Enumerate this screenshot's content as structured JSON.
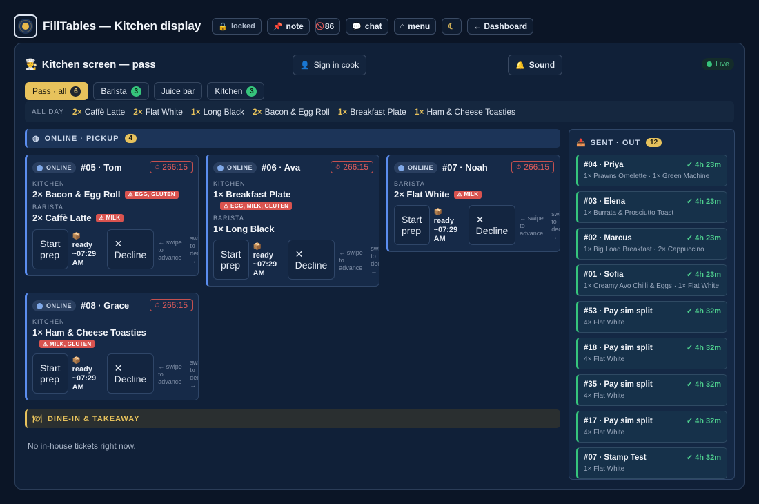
{
  "app": {
    "title": "FillTables — Kitchen display",
    "buttons": {
      "locked": "locked",
      "note": "note",
      "count86": "86",
      "chat": "chat",
      "menu": "menu",
      "dashboard": "← Dashboard"
    }
  },
  "panel": {
    "title": "Kitchen screen — pass",
    "sign_in": "Sign in cook",
    "sound": "Sound",
    "live": "Live"
  },
  "filters": [
    {
      "label": "Pass · all",
      "count": "6"
    },
    {
      "label": "Barista",
      "count": "3"
    },
    {
      "label": "Juice bar",
      "count": ""
    },
    {
      "label": "Kitchen",
      "count": "3"
    }
  ],
  "allday": {
    "label": "ALL DAY",
    "items": [
      {
        "q": "2×",
        "name": "Caffè Latte"
      },
      {
        "q": "2×",
        "name": "Flat White"
      },
      {
        "q": "1×",
        "name": "Long Black"
      },
      {
        "q": "2×",
        "name": "Bacon & Egg Roll"
      },
      {
        "q": "1×",
        "name": "Breakfast Plate"
      },
      {
        "q": "1×",
        "name": "Ham & Cheese Toasties"
      }
    ]
  },
  "online_section": {
    "label": "ONLINE · PICKUP",
    "count": "4"
  },
  "tickets": [
    {
      "tag": "ONLINE",
      "title": "#05 · Tom",
      "timer": "266:15",
      "s1": "KITCHEN",
      "i1": "2× Bacon & Egg Roll",
      "a1": "⚠ EGG, GLUTEN",
      "s2": "BARISTA",
      "i2": "2× Caffè Latte",
      "a2": "⚠ MILK"
    },
    {
      "tag": "ONLINE",
      "title": "#06 · Ava",
      "timer": "266:15",
      "s1": "KITCHEN",
      "i1": "1× Breakfast Plate",
      "a1": "⚠ EGG, MILK, GLUTEN",
      "s2": "BARISTA",
      "i2": "1× Long Black"
    },
    {
      "tag": "ONLINE",
      "title": "#07 · Noah",
      "timer": "266:15",
      "s1": "BARISTA",
      "i1": "2× Flat White",
      "a1": "⚠ MILK"
    },
    {
      "tag": "ONLINE",
      "title": "#08 · Grace",
      "timer": "266:15",
      "s1": "KITCHEN",
      "i1": "1× Ham & Cheese Toasties",
      "a1": "⚠ MILK, GLUTEN"
    }
  ],
  "ticket_actions": {
    "start_1": "Start",
    "start_2": "prep",
    "ready_1": "ready",
    "ready_2": "~07:29",
    "ready_3": "AM",
    "decline_1": "✕",
    "decline_2": "Decline",
    "swipe_a1": "← swipe",
    "swipe_a2": "to",
    "swipe_a3": "advance",
    "swipe_b1": "swi",
    "swipe_b2": "to",
    "swipe_b3": "dec",
    "swipe_b4": "→"
  },
  "dine_section": {
    "label": "DINE-IN & TAKEAWAY"
  },
  "dine_empty": "No in-house tickets right now.",
  "sent": {
    "label": "SENT · OUT",
    "count": "12",
    "items": [
      {
        "title": "#04 · Priya",
        "time": "✓ 4h 23m",
        "sub": "1× Prawns Omelette · 1× Green Machine"
      },
      {
        "title": "#03 · Elena",
        "time": "✓ 4h 23m",
        "sub": "1× Burrata & Prosciutto Toast"
      },
      {
        "title": "#02 · Marcus",
        "time": "✓ 4h 23m",
        "sub": "1× Big Load Breakfast · 2× Cappuccino"
      },
      {
        "title": "#01 · Sofia",
        "time": "✓ 4h 23m",
        "sub": "1× Creamy Avo Chilli & Eggs · 1× Flat White"
      },
      {
        "title": "#53 · Pay sim split",
        "time": "✓ 4h 32m",
        "sub": "4× Flat White"
      },
      {
        "title": "#18 · Pay sim split",
        "time": "✓ 4h 32m",
        "sub": "4× Flat White"
      },
      {
        "title": "#35 · Pay sim split",
        "time": "✓ 4h 32m",
        "sub": "4× Flat White"
      },
      {
        "title": "#17 · Pay sim split",
        "time": "✓ 4h 32m",
        "sub": "4× Flat White"
      },
      {
        "title": "#07 · Stamp Test",
        "time": "✓ 4h 32m",
        "sub": "1× Flat White"
      }
    ]
  },
  "icons": {
    "logo": "logo-icon",
    "lock": "lock-icon",
    "pin": "pin-icon",
    "no": "no-entry-icon",
    "chat": "chat-bubble-icon",
    "home": "home-icon",
    "moon": "moon-icon",
    "chef": "chef-icon",
    "user": "user-icon",
    "bell": "bell-icon",
    "globe": "globe-icon",
    "stopwatch": "stopwatch-icon",
    "package": "package-icon",
    "plate": "plate-icon",
    "outbox": "outbox-icon"
  },
  "colors": {
    "background": "#0b1526",
    "panel": "#102038",
    "accent_gold": "#e7c25c",
    "online_blue": "#5b8def",
    "done_green": "#36c47c",
    "alert_red": "#d9534f"
  }
}
